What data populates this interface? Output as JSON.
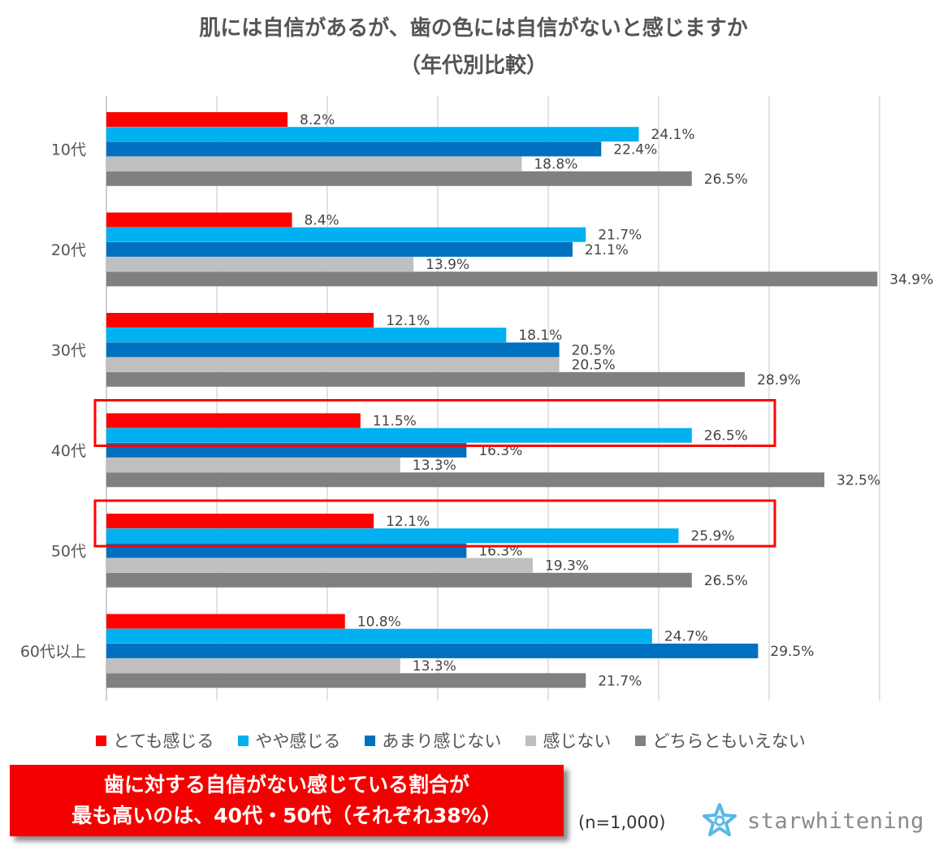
{
  "title_lines": [
    "肌には自信があるが、歯の色には自信がないと感じますか",
    "（年代別比較）"
  ],
  "chart_data": {
    "type": "bar",
    "orientation": "horizontal",
    "title": "肌には自信があるが、歯の色には自信がないと感じますか（年代別比較）",
    "categories": [
      "10代",
      "20代",
      "30代",
      "40代",
      "50代",
      "60代以上"
    ],
    "series": [
      {
        "name": "とても感じる",
        "color": "#ff0000",
        "values": [
          8.2,
          8.4,
          12.1,
          11.5,
          12.1,
          10.8
        ]
      },
      {
        "name": "やや感じる",
        "color": "#00b0f0",
        "values": [
          24.1,
          21.7,
          18.1,
          26.5,
          25.9,
          24.7
        ]
      },
      {
        "name": "あまり感じない",
        "color": "#0070c0",
        "values": [
          22.4,
          21.1,
          20.5,
          16.3,
          16.3,
          29.5
        ]
      },
      {
        "name": "感じない",
        "color": "#bfbfbf",
        "values": [
          18.8,
          13.9,
          20.5,
          13.3,
          19.3,
          13.3
        ]
      },
      {
        "name": "どちらともいえない",
        "color": "#808080",
        "values": [
          26.5,
          34.9,
          28.9,
          32.5,
          26.5,
          21.7
        ]
      }
    ],
    "value_suffix": "%",
    "xlim": [
      0,
      35
    ],
    "grid": true,
    "legend_position": "bottom",
    "highlighted_categories": [
      "40代",
      "50代"
    ],
    "highlight_color": "#ff0000"
  },
  "callout": {
    "line1": "歯に対する自信がない感じている割合が",
    "line2": "最も高いのは、40代・50代（それぞれ38%）"
  },
  "sample_size": "(n=1,000)",
  "brand": {
    "name": "starwhitening",
    "icon": "star-logo-icon",
    "color": "#8a8a8a"
  }
}
